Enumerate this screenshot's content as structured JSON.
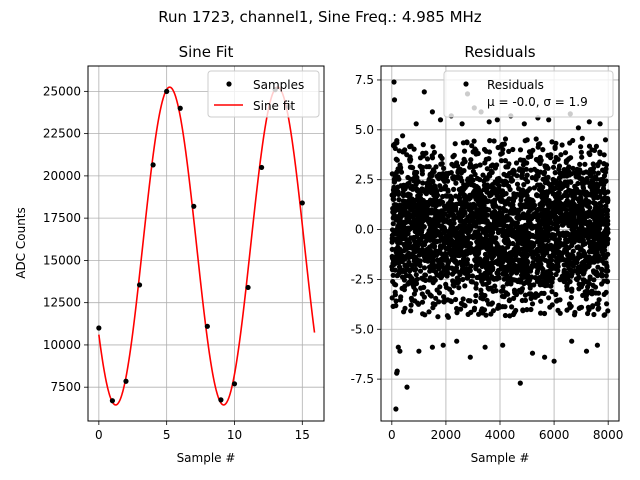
{
  "figure": {
    "suptitle": "Run 1723, channel1, Sine Freq.: 4.985 MHz"
  },
  "chart_data": [
    {
      "type": "line",
      "title": "Sine Fit",
      "xlabel": "Sample #",
      "ylabel": "ADC Counts",
      "xlim": [
        -0.8,
        16.6
      ],
      "ylim": [
        5500,
        26500
      ],
      "xticks": [
        0,
        5,
        10,
        15
      ],
      "yticks": [
        7500,
        10000,
        12500,
        15000,
        17500,
        20000,
        22500,
        25000
      ],
      "grid": true,
      "legend_position": "top-right",
      "series": [
        {
          "name": "Samples",
          "kind": "scatter",
          "color": "#000000",
          "x": [
            0,
            1,
            2,
            3,
            4,
            5,
            6,
            7,
            8,
            9,
            10,
            11,
            12,
            13,
            14,
            15
          ],
          "y": [
            11000,
            6700,
            7850,
            13550,
            20650,
            25000,
            24000,
            18200,
            11100,
            6750,
            7700,
            13400,
            20500,
            25100,
            24100,
            18400
          ]
        },
        {
          "name": "Sine fit",
          "kind": "line",
          "color": "#ff0000",
          "function": "sine",
          "offset": 15850,
          "amplitude": 9400,
          "period": 7.96,
          "phase_at_x0": -2.55,
          "x_start": 0,
          "x_end": 15.9
        }
      ]
    },
    {
      "type": "scatter",
      "title": "Residuals",
      "xlabel": "Sample #",
      "ylabel": "",
      "xlim": [
        -400,
        8400
      ],
      "ylim": [
        -9.6,
        8.2
      ],
      "xticks": [
        0,
        2000,
        4000,
        6000,
        8000
      ],
      "yticks": [
        -7.5,
        -5.0,
        -2.5,
        0.0,
        2.5,
        5.0,
        7.5
      ],
      "grid": true,
      "legend_position": "top-right",
      "series": [
        {
          "name": "Residuals",
          "color": "#000000",
          "n_points": 8000,
          "mean": -0.0,
          "sigma": 1.9,
          "x_range": [
            0,
            8000
          ],
          "outliers": [
            [
              80,
              7.4
            ],
            [
              100,
              6.5
            ],
            [
              150,
              -9.0
            ],
            [
              180,
              -7.2
            ],
            [
              200,
              -7.1
            ],
            [
              240,
              -5.9
            ],
            [
              300,
              -6.1
            ],
            [
              560,
              -7.9
            ],
            [
              900,
              5.3
            ],
            [
              1200,
              6.9
            ],
            [
              1500,
              5.9
            ],
            [
              1800,
              5.5
            ],
            [
              2200,
              5.7
            ],
            [
              2600,
              5.3
            ],
            [
              2800,
              6.8
            ],
            [
              3050,
              6.1
            ],
            [
              3300,
              5.9
            ],
            [
              3600,
              5.4
            ],
            [
              3900,
              5.5
            ],
            [
              4400,
              5.7
            ],
            [
              4900,
              5.3
            ],
            [
              5400,
              5.6
            ],
            [
              5800,
              5.5
            ],
            [
              6600,
              5.8
            ],
            [
              6900,
              5.1
            ],
            [
              7300,
              5.4
            ],
            [
              7700,
              5.3
            ],
            [
              7900,
              4.5
            ],
            [
              400,
              4.7
            ],
            [
              1000,
              -6.1
            ],
            [
              1500,
              -5.9
            ],
            [
              1900,
              -5.8
            ],
            [
              2400,
              -5.6
            ],
            [
              2900,
              -6.4
            ],
            [
              3450,
              -5.9
            ],
            [
              4100,
              -5.8
            ],
            [
              4750,
              -7.7
            ],
            [
              5200,
              -6.2
            ],
            [
              5650,
              -6.4
            ],
            [
              6000,
              -6.6
            ],
            [
              6650,
              -5.6
            ],
            [
              7200,
              -6.1
            ],
            [
              7600,
              -5.8
            ],
            [
              7850,
              -4.3
            ]
          ]
        }
      ],
      "legend_stats": {
        "mu_label": "μ = -0.0, σ = 1.9"
      }
    }
  ]
}
